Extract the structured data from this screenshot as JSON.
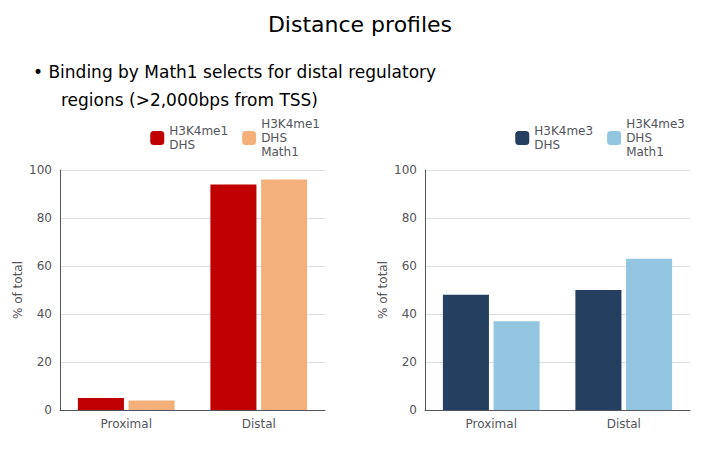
{
  "chart_data": [
    {
      "type": "bar",
      "title": "Distance profiles",
      "annotations": [
        "• Binding by Math1 selects for distal regulatory",
        "regions (>2,000bps from TSS)"
      ],
      "categories": [
        "Proximal",
        "Distal"
      ],
      "series": [
        {
          "name": "H3K4me1\nDHS",
          "color": "#C00000",
          "values": [
            5,
            94
          ]
        },
        {
          "name": "H3K4me1\nDHS\nMath1",
          "color": "#F4B07A",
          "values": [
            4,
            96
          ]
        }
      ],
      "ylabel": "% of total",
      "ylim": [
        0,
        100
      ],
      "yticks": [
        0,
        20,
        40,
        60,
        80,
        100
      ],
      "grid": true,
      "legend": "upper right"
    },
    {
      "type": "bar",
      "categories": [
        "Proximal",
        "Distal"
      ],
      "series": [
        {
          "name": "H3K4me3\nDHS",
          "color": "#243F60",
          "values": [
            48,
            50
          ]
        },
        {
          "name": "H3K4me3\nDHS\nMath1",
          "color": "#92C5E0",
          "values": [
            37,
            63
          ]
        }
      ],
      "ylabel": "% of total",
      "ylim": [
        0,
        100
      ],
      "yticks": [
        0,
        20,
        40,
        60,
        80,
        100
      ],
      "grid": true,
      "legend": "upper right"
    }
  ]
}
